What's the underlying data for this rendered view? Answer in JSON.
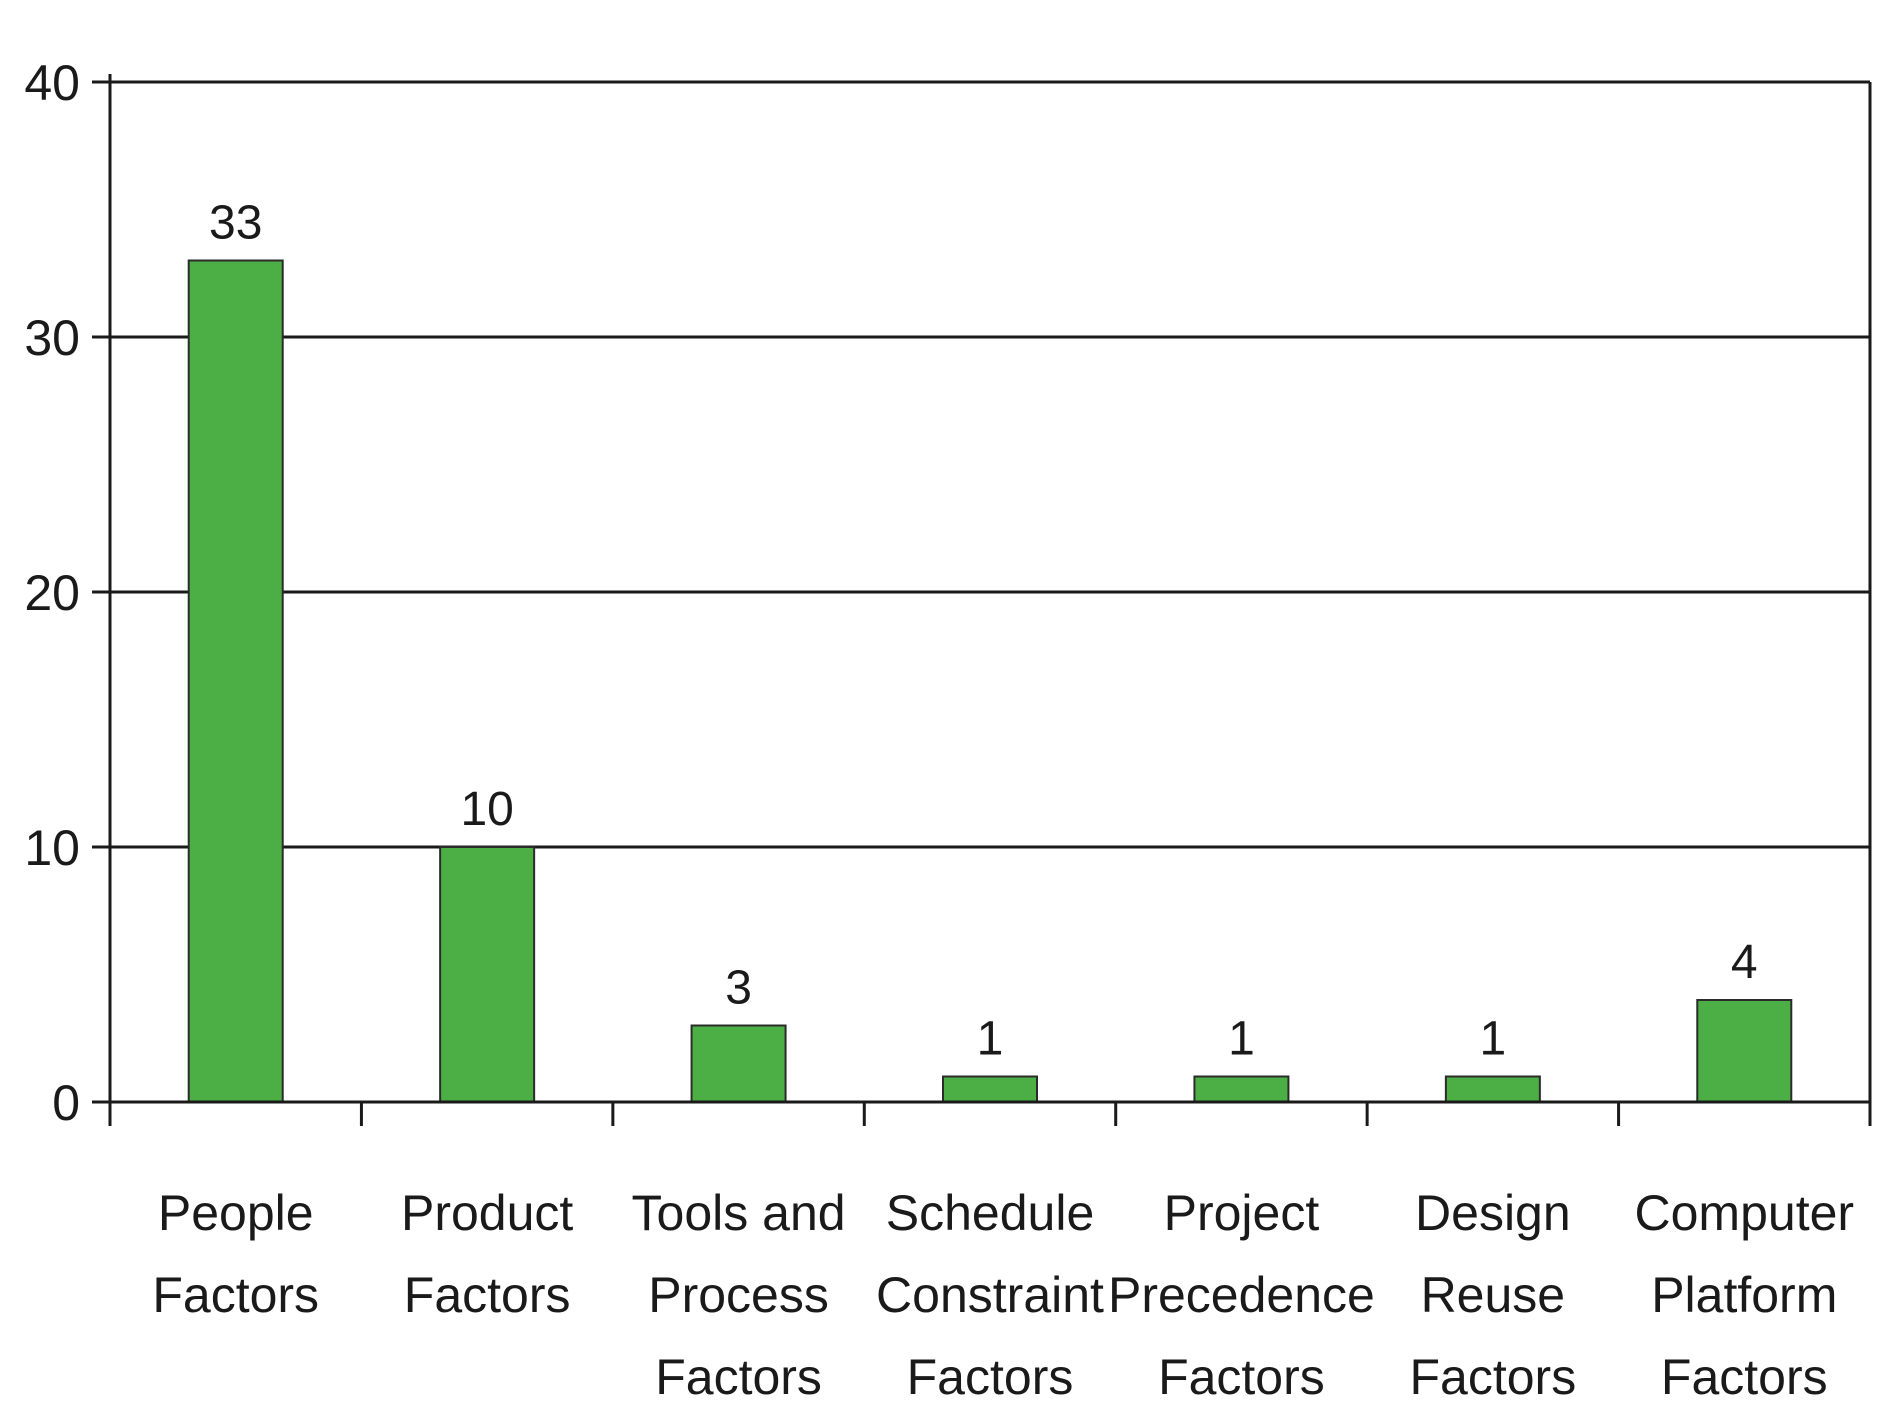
{
  "chart_data": {
    "type": "bar",
    "title": "",
    "xlabel": "",
    "ylabel": "",
    "ylim": [
      0,
      40
    ],
    "yticks": [
      0,
      10,
      20,
      30,
      40
    ],
    "grid": true,
    "bar_color": "#4caf45",
    "categories": [
      [
        "People",
        "Factors"
      ],
      [
        "Product",
        "Factors"
      ],
      [
        "Tools and",
        "Process",
        "Factors"
      ],
      [
        "Schedule",
        "Constraint",
        "Factors"
      ],
      [
        "Project",
        "Precedence",
        "Factors"
      ],
      [
        "Design",
        "Reuse",
        "Factors"
      ],
      [
        "Computer",
        "Platform",
        "Factors"
      ]
    ],
    "values": [
      33,
      10,
      3,
      1,
      1,
      1,
      4
    ],
    "data_labels": [
      "33",
      "10",
      "3",
      "1",
      "1",
      "1",
      "4"
    ]
  }
}
